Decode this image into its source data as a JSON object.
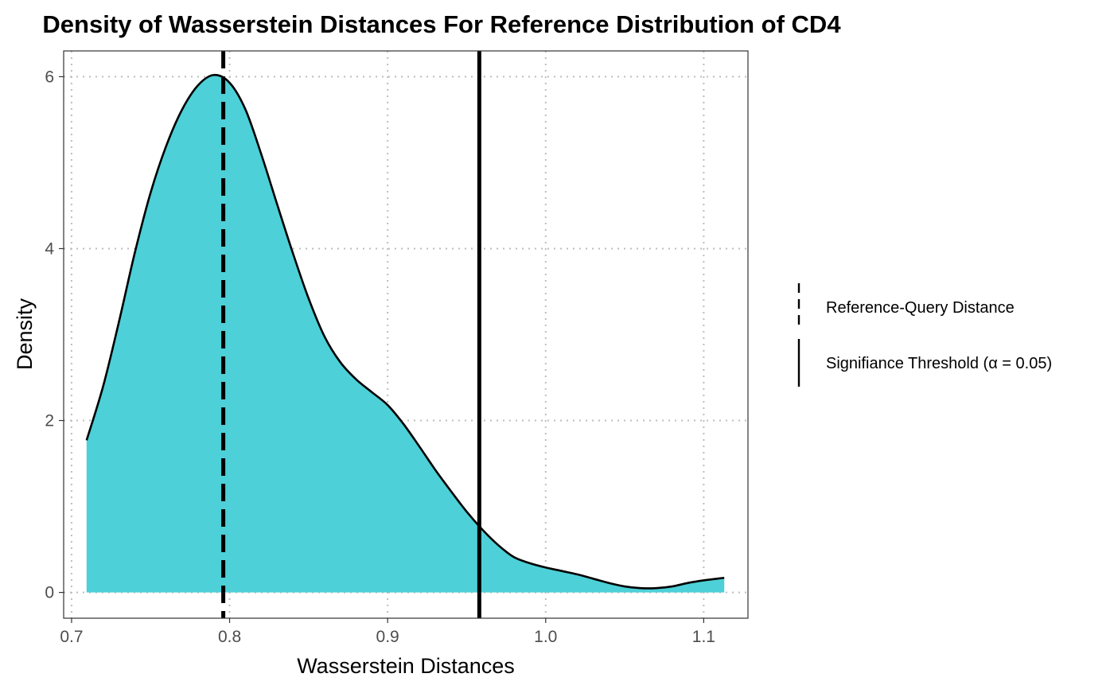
{
  "chart_data": {
    "type": "area",
    "title": "Density of Wasserstein Distances For Reference Distribution of CD4",
    "xlabel": "Wasserstein Distances",
    "ylabel": "Density",
    "xlim": [
      0.695,
      1.128
    ],
    "ylim": [
      -0.3,
      6.3
    ],
    "x_ticks": [
      {
        "value": 0.7,
        "label": "0.7"
      },
      {
        "value": 0.8,
        "label": "0.8"
      },
      {
        "value": 0.9,
        "label": "0.9"
      },
      {
        "value": 1.0,
        "label": "1.0"
      },
      {
        "value": 1.1,
        "label": "1.1"
      }
    ],
    "y_ticks": [
      {
        "value": 0,
        "label": "0"
      },
      {
        "value": 2,
        "label": "2"
      },
      {
        "value": 4,
        "label": "4"
      },
      {
        "value": 6,
        "label": "6"
      }
    ],
    "grid": "dotted",
    "fill_color": "#4DD0D7",
    "line_color": "#000000",
    "series": [
      {
        "x": [
          0.7095,
          0.72,
          0.73,
          0.74,
          0.75,
          0.76,
          0.77,
          0.78,
          0.79,
          0.8,
          0.81,
          0.82,
          0.83,
          0.84,
          0.85,
          0.86,
          0.87,
          0.88,
          0.89,
          0.9,
          0.91,
          0.92,
          0.93,
          0.94,
          0.95,
          0.96,
          0.97,
          0.98,
          0.99,
          1.0,
          1.01,
          1.02,
          1.03,
          1.04,
          1.05,
          1.06,
          1.07,
          1.08,
          1.09,
          1.1,
          1.113
        ],
        "y": [
          1.77,
          2.4,
          3.15,
          3.95,
          4.65,
          5.2,
          5.62,
          5.9,
          6.02,
          5.93,
          5.62,
          5.1,
          4.52,
          3.95,
          3.42,
          2.98,
          2.68,
          2.48,
          2.33,
          2.18,
          1.96,
          1.7,
          1.43,
          1.18,
          0.94,
          0.73,
          0.55,
          0.41,
          0.34,
          0.29,
          0.25,
          0.21,
          0.16,
          0.11,
          0.07,
          0.05,
          0.05,
          0.07,
          0.11,
          0.14,
          0.17
        ]
      }
    ],
    "vlines": [
      {
        "x": 0.796,
        "style": "dashed",
        "label": "Reference-Query Distance"
      },
      {
        "x": 0.958,
        "style": "solid",
        "label": "Signifiance Threshold (α = 0.05)"
      }
    ],
    "legend_position": "right"
  }
}
